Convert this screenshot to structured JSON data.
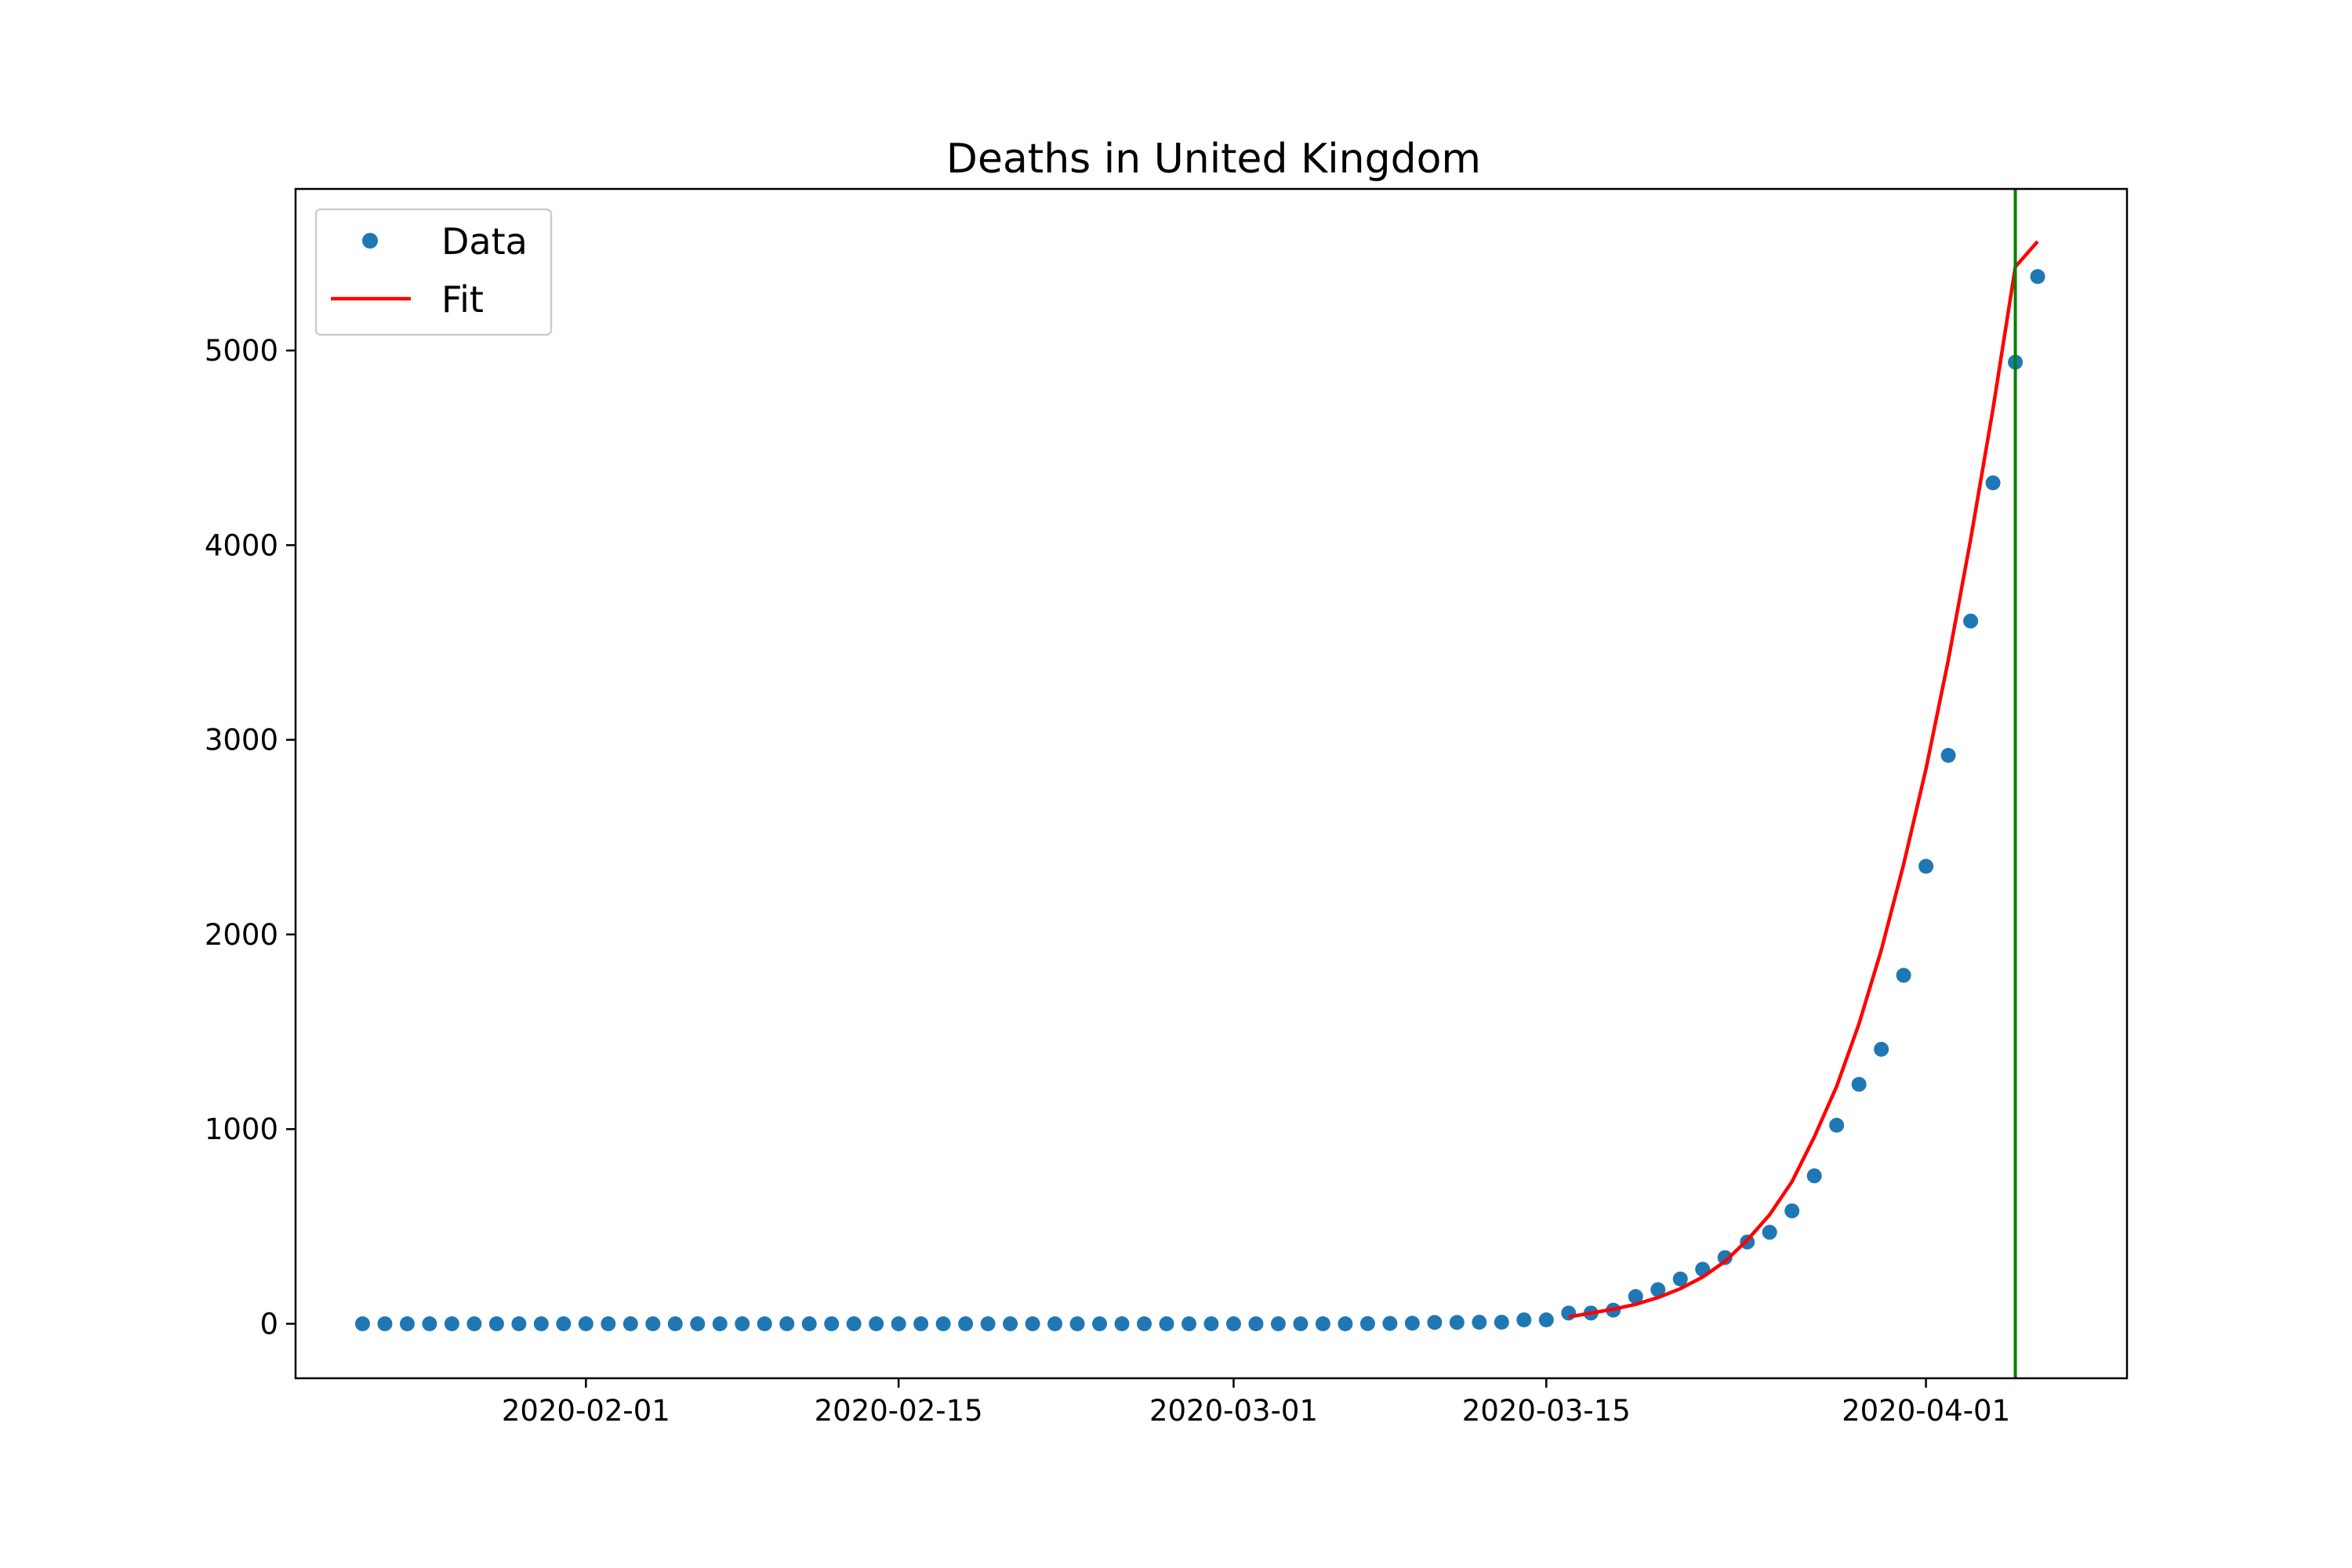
{
  "chart_data": {
    "type": "line",
    "title": "Deaths in United Kingdom",
    "xlabel": "",
    "ylabel": "",
    "x_axis_type": "date",
    "xlim": [
      "2020-01-19",
      "2020-04-10"
    ],
    "ylim": [
      -280,
      5830
    ],
    "x_ticks": [
      "2020-02-01",
      "2020-02-15",
      "2020-03-01",
      "2020-03-15",
      "2020-04-01"
    ],
    "y_ticks": [
      0,
      1000,
      2000,
      3000,
      4000,
      5000
    ],
    "x_tick_labels": [
      "2020-02-01",
      "2020-02-15",
      "2020-03-01",
      "2020-03-15",
      "2020-04-01"
    ],
    "y_tick_labels": [
      "0",
      "1000",
      "2000",
      "3000",
      "4000",
      "5000"
    ],
    "grid": false,
    "legend": {
      "position": "upper-left",
      "entries": [
        "Data",
        "Fit"
      ]
    },
    "colors": {
      "data": "#1f77b4",
      "fit": "#ff0000",
      "vline": "#008000",
      "axes": "#000000"
    },
    "series": [
      {
        "name": "Data",
        "style": "markers",
        "x": [
          "2020-01-22",
          "2020-01-23",
          "2020-01-24",
          "2020-01-25",
          "2020-01-26",
          "2020-01-27",
          "2020-01-28",
          "2020-01-29",
          "2020-01-30",
          "2020-01-31",
          "2020-02-01",
          "2020-02-02",
          "2020-02-03",
          "2020-02-04",
          "2020-02-05",
          "2020-02-06",
          "2020-02-07",
          "2020-02-08",
          "2020-02-09",
          "2020-02-10",
          "2020-02-11",
          "2020-02-12",
          "2020-02-13",
          "2020-02-14",
          "2020-02-15",
          "2020-02-16",
          "2020-02-17",
          "2020-02-18",
          "2020-02-19",
          "2020-02-20",
          "2020-02-21",
          "2020-02-22",
          "2020-02-23",
          "2020-02-24",
          "2020-02-25",
          "2020-02-26",
          "2020-02-27",
          "2020-02-28",
          "2020-02-29",
          "2020-03-01",
          "2020-03-02",
          "2020-03-03",
          "2020-03-04",
          "2020-03-05",
          "2020-03-06",
          "2020-03-07",
          "2020-03-08",
          "2020-03-09",
          "2020-03-10",
          "2020-03-11",
          "2020-03-12",
          "2020-03-13",
          "2020-03-14",
          "2020-03-15",
          "2020-03-16",
          "2020-03-17",
          "2020-03-18",
          "2020-03-19",
          "2020-03-20",
          "2020-03-21",
          "2020-03-22",
          "2020-03-23",
          "2020-03-24",
          "2020-03-25",
          "2020-03-26",
          "2020-03-27",
          "2020-03-28",
          "2020-03-29",
          "2020-03-30",
          "2020-03-31",
          "2020-04-01",
          "2020-04-02",
          "2020-04-03",
          "2020-04-04",
          "2020-04-05",
          "2020-04-06"
        ],
        "values": [
          0,
          0,
          0,
          0,
          0,
          0,
          0,
          0,
          0,
          0,
          0,
          0,
          0,
          0,
          0,
          0,
          0,
          0,
          0,
          0,
          0,
          0,
          0,
          0,
          0,
          0,
          0,
          0,
          0,
          0,
          0,
          0,
          0,
          0,
          0,
          0,
          0,
          0,
          0,
          0,
          0,
          0,
          0,
          0,
          0,
          1,
          2,
          3,
          7,
          7,
          8,
          8,
          20,
          20,
          55,
          55,
          70,
          140,
          175,
          230,
          280,
          340,
          420,
          470,
          580,
          760,
          1020,
          1230,
          1410,
          1790,
          2350,
          2920,
          3610,
          4320,
          4940,
          5380
        ]
      },
      {
        "name": "Fit",
        "style": "line",
        "x": [
          "2020-03-16",
          "2020-03-17",
          "2020-03-18",
          "2020-03-19",
          "2020-03-20",
          "2020-03-21",
          "2020-03-22",
          "2020-03-23",
          "2020-03-24",
          "2020-03-25",
          "2020-03-26",
          "2020-03-27",
          "2020-03-28",
          "2020-03-29",
          "2020-03-30",
          "2020-03-31",
          "2020-04-01",
          "2020-04-02",
          "2020-04-03",
          "2020-04-04",
          "2020-04-05",
          "2020-04-06"
        ],
        "values": [
          35,
          55,
          75,
          100,
          135,
          180,
          240,
          320,
          430,
          560,
          730,
          960,
          1220,
          1540,
          1920,
          2360,
          2850,
          3410,
          4030,
          4700,
          5430,
          5560
        ]
      }
    ],
    "vertical_line": {
      "x": "2020-04-05"
    }
  }
}
